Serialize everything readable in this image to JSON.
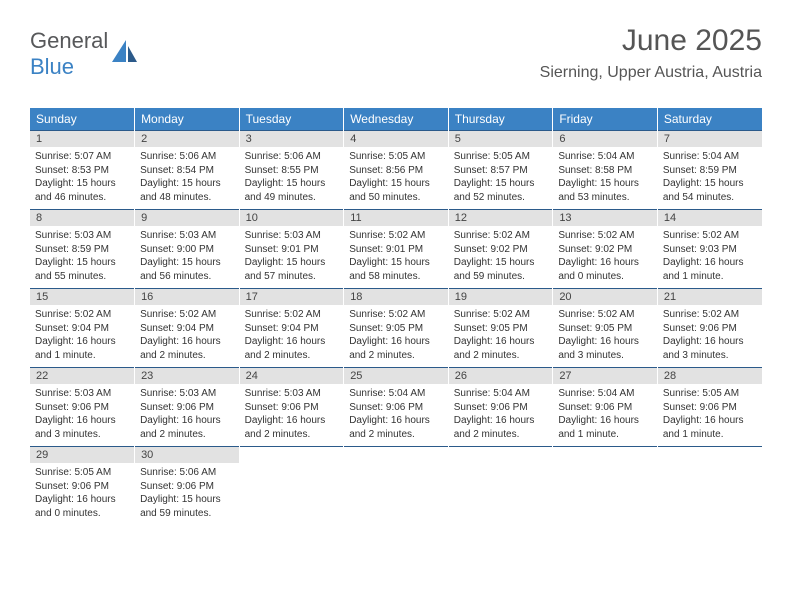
{
  "logo": {
    "part1": "General",
    "part2": "Blue"
  },
  "header": {
    "title": "June 2025",
    "location": "Sierning, Upper Austria, Austria"
  },
  "colors": {
    "header_bg": "#3b82c4",
    "daynum_bg": "#e2e2e2",
    "row_border": "#2b5a8a",
    "logo_gray": "#57585a",
    "logo_blue": "#3b82c4"
  },
  "weekdays": [
    "Sunday",
    "Monday",
    "Tuesday",
    "Wednesday",
    "Thursday",
    "Friday",
    "Saturday"
  ],
  "days": {
    "1": {
      "sunrise": "5:07 AM",
      "sunset": "8:53 PM",
      "daylight": "15 hours and 46 minutes."
    },
    "2": {
      "sunrise": "5:06 AM",
      "sunset": "8:54 PM",
      "daylight": "15 hours and 48 minutes."
    },
    "3": {
      "sunrise": "5:06 AM",
      "sunset": "8:55 PM",
      "daylight": "15 hours and 49 minutes."
    },
    "4": {
      "sunrise": "5:05 AM",
      "sunset": "8:56 PM",
      "daylight": "15 hours and 50 minutes."
    },
    "5": {
      "sunrise": "5:05 AM",
      "sunset": "8:57 PM",
      "daylight": "15 hours and 52 minutes."
    },
    "6": {
      "sunrise": "5:04 AM",
      "sunset": "8:58 PM",
      "daylight": "15 hours and 53 minutes."
    },
    "7": {
      "sunrise": "5:04 AM",
      "sunset": "8:59 PM",
      "daylight": "15 hours and 54 minutes."
    },
    "8": {
      "sunrise": "5:03 AM",
      "sunset": "8:59 PM",
      "daylight": "15 hours and 55 minutes."
    },
    "9": {
      "sunrise": "5:03 AM",
      "sunset": "9:00 PM",
      "daylight": "15 hours and 56 minutes."
    },
    "10": {
      "sunrise": "5:03 AM",
      "sunset": "9:01 PM",
      "daylight": "15 hours and 57 minutes."
    },
    "11": {
      "sunrise": "5:02 AM",
      "sunset": "9:01 PM",
      "daylight": "15 hours and 58 minutes."
    },
    "12": {
      "sunrise": "5:02 AM",
      "sunset": "9:02 PM",
      "daylight": "15 hours and 59 minutes."
    },
    "13": {
      "sunrise": "5:02 AM",
      "sunset": "9:02 PM",
      "daylight": "16 hours and 0 minutes."
    },
    "14": {
      "sunrise": "5:02 AM",
      "sunset": "9:03 PM",
      "daylight": "16 hours and 1 minute."
    },
    "15": {
      "sunrise": "5:02 AM",
      "sunset": "9:04 PM",
      "daylight": "16 hours and 1 minute."
    },
    "16": {
      "sunrise": "5:02 AM",
      "sunset": "9:04 PM",
      "daylight": "16 hours and 2 minutes."
    },
    "17": {
      "sunrise": "5:02 AM",
      "sunset": "9:04 PM",
      "daylight": "16 hours and 2 minutes."
    },
    "18": {
      "sunrise": "5:02 AM",
      "sunset": "9:05 PM",
      "daylight": "16 hours and 2 minutes."
    },
    "19": {
      "sunrise": "5:02 AM",
      "sunset": "9:05 PM",
      "daylight": "16 hours and 2 minutes."
    },
    "20": {
      "sunrise": "5:02 AM",
      "sunset": "9:05 PM",
      "daylight": "16 hours and 3 minutes."
    },
    "21": {
      "sunrise": "5:02 AM",
      "sunset": "9:06 PM",
      "daylight": "16 hours and 3 minutes."
    },
    "22": {
      "sunrise": "5:03 AM",
      "sunset": "9:06 PM",
      "daylight": "16 hours and 3 minutes."
    },
    "23": {
      "sunrise": "5:03 AM",
      "sunset": "9:06 PM",
      "daylight": "16 hours and 2 minutes."
    },
    "24": {
      "sunrise": "5:03 AM",
      "sunset": "9:06 PM",
      "daylight": "16 hours and 2 minutes."
    },
    "25": {
      "sunrise": "5:04 AM",
      "sunset": "9:06 PM",
      "daylight": "16 hours and 2 minutes."
    },
    "26": {
      "sunrise": "5:04 AM",
      "sunset": "9:06 PM",
      "daylight": "16 hours and 2 minutes."
    },
    "27": {
      "sunrise": "5:04 AM",
      "sunset": "9:06 PM",
      "daylight": "16 hours and 1 minute."
    },
    "28": {
      "sunrise": "5:05 AM",
      "sunset": "9:06 PM",
      "daylight": "16 hours and 1 minute."
    },
    "29": {
      "sunrise": "5:05 AM",
      "sunset": "9:06 PM",
      "daylight": "16 hours and 0 minutes."
    },
    "30": {
      "sunrise": "5:06 AM",
      "sunset": "9:06 PM",
      "daylight": "15 hours and 59 minutes."
    }
  },
  "labels": {
    "sunrise": "Sunrise: ",
    "sunset": "Sunset: ",
    "daylight": "Daylight: "
  }
}
